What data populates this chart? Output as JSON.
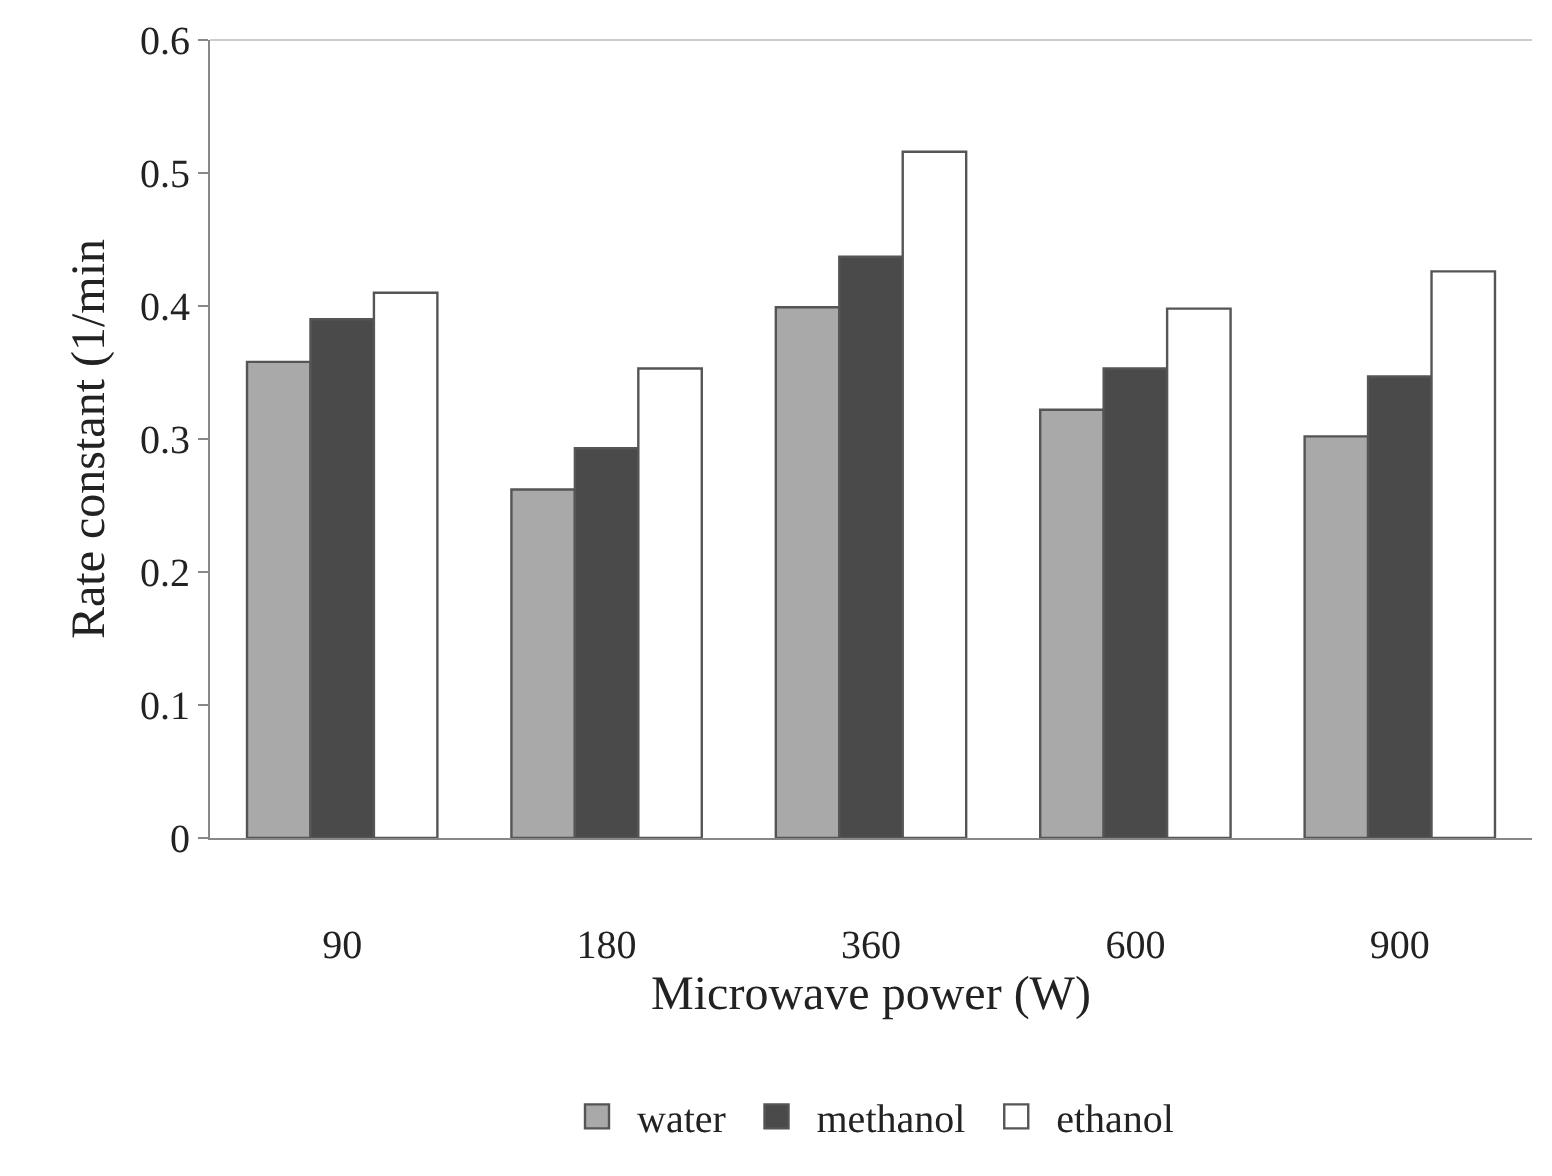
{
  "chart_data": {
    "type": "bar",
    "xlabel": "Microwave power (W)",
    "ylabel": "Rate constant (1/min",
    "categories": [
      "90",
      "180",
      "360",
      "600",
      "900"
    ],
    "series": [
      {
        "name": "water",
        "color": "#a9a9a9",
        "values": [
          0.358,
          0.262,
          0.399,
          0.322,
          0.302
        ]
      },
      {
        "name": "methanol",
        "color": "#4a4a4a",
        "values": [
          0.39,
          0.293,
          0.437,
          0.353,
          0.347
        ]
      },
      {
        "name": "ethanol",
        "color": "#ffffff",
        "values": [
          0.41,
          0.353,
          0.516,
          0.398,
          0.426
        ]
      }
    ],
    "ylim": [
      0,
      0.6
    ],
    "yticks": [
      0,
      0.1,
      0.2,
      0.3,
      0.4,
      0.5,
      0.6
    ],
    "legend": "bottom"
  }
}
